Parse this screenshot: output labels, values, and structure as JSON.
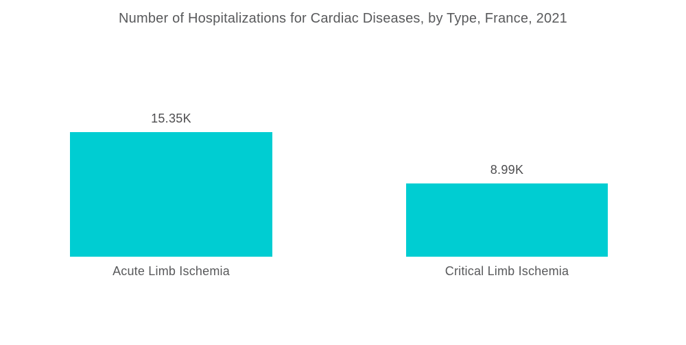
{
  "title": "Number of Hospitalizations for Cardiac Diseases, by Type, France, 2021",
  "colors": {
    "bar": "#00CDD2",
    "title_text": "#58595B",
    "label_text": "#58595B",
    "value_text": "#4D4D4F",
    "background": "#FFFFFF"
  },
  "chart_data": {
    "type": "bar",
    "title": "Number of Hospitalizations for Cardiac Diseases, by Type, France, 2021",
    "categories": [
      "Acute Limb Ischemia",
      "Critical Limb Ischemia"
    ],
    "values": [
      15350,
      8990
    ],
    "value_labels": [
      "15.35K",
      "8.99K"
    ],
    "series": [
      {
        "name": "Hospitalizations",
        "values": [
          15350,
          8990
        ]
      }
    ],
    "xlabel": "",
    "ylabel": "",
    "ylim": [
      0,
      15350
    ],
    "grid": false,
    "legend": false,
    "axes_visible": false,
    "bar_color": "#00CDD2",
    "orientation": "vertical"
  }
}
